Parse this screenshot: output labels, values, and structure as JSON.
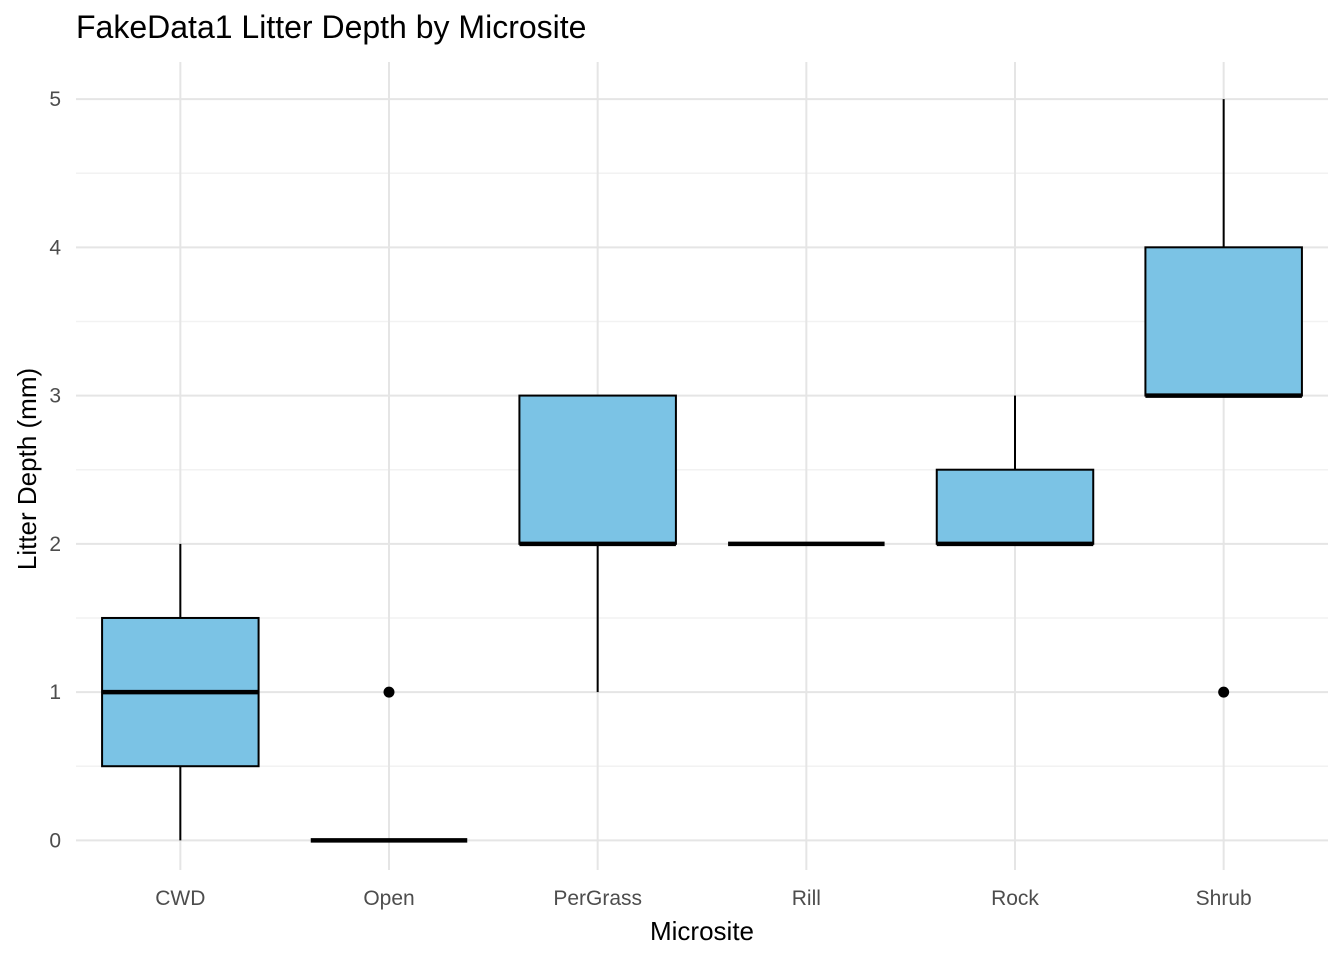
{
  "chart_data": {
    "type": "boxplot",
    "title": "FakeData1 Litter Depth by Microsite",
    "xlabel": "Microsite",
    "ylabel": "Litter Depth (mm)",
    "categories": [
      "CWD",
      "Open",
      "PerGrass",
      "Rill",
      "Rock",
      "Shrub"
    ],
    "ylim": [
      -0.2,
      5.25
    ],
    "y_ticks": [
      0,
      1,
      2,
      3,
      4,
      5
    ],
    "y_tick_labels": [
      "0",
      "1",
      "2",
      "3",
      "4",
      "5"
    ],
    "boxes": [
      {
        "category": "CWD",
        "whisker_low": 0,
        "q1": 0.5,
        "median": 1,
        "q3": 1.5,
        "whisker_high": 2,
        "outliers": []
      },
      {
        "category": "Open",
        "whisker_low": 0,
        "q1": 0,
        "median": 0,
        "q3": 0,
        "whisker_high": 0,
        "outliers": [
          1
        ]
      },
      {
        "category": "PerGrass",
        "whisker_low": 1,
        "q1": 2,
        "median": 2,
        "q3": 3,
        "whisker_high": 3,
        "outliers": []
      },
      {
        "category": "Rill",
        "whisker_low": 2,
        "q1": 2,
        "median": 2,
        "q3": 2,
        "whisker_high": 2,
        "outliers": []
      },
      {
        "category": "Rock",
        "whisker_low": 2,
        "q1": 2,
        "median": 2,
        "q3": 2.5,
        "whisker_high": 3,
        "outliers": []
      },
      {
        "category": "Shrub",
        "whisker_low": 3,
        "q1": 3,
        "median": 3,
        "q3": 4,
        "whisker_high": 5,
        "outliers": [
          1
        ]
      }
    ],
    "grid": true,
    "legend": "none",
    "colors": {
      "box_fill": "#7bc3e5",
      "box_stroke": "#000000",
      "grid_major": "#e5e5e5",
      "grid_minor": "#f2f2f2",
      "outlier": "#000000"
    }
  }
}
